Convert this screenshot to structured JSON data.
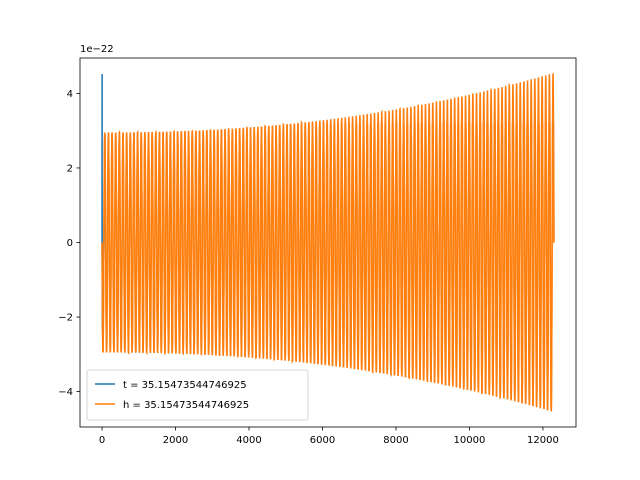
{
  "chart_data": {
    "type": "line",
    "title": "",
    "xlabel": "",
    "ylabel": "",
    "y_offset_text": "1e−22",
    "xlim": [
      -600,
      12900
    ],
    "ylim": [
      -4.95,
      4.95
    ],
    "x_ticks": [
      0,
      2000,
      4000,
      6000,
      8000,
      10000,
      12000
    ],
    "x_tick_labels": [
      "0",
      "2000",
      "4000",
      "6000",
      "8000",
      "10000",
      "12000"
    ],
    "y_ticks": [
      -4,
      -2,
      0,
      2,
      4
    ],
    "y_tick_labels": [
      "−4",
      "−2",
      "0",
      "2",
      "4"
    ],
    "grid": false,
    "legend_position": "lower-left",
    "series": [
      {
        "name": "t = 35.15473544746925",
        "color": "#1f77b4",
        "x": [
          0,
          1,
          2,
          3,
          4,
          5,
          10,
          20,
          40,
          60,
          80
        ],
        "y": [
          0.0,
          4.5,
          4.5,
          2.0,
          0.0,
          -1.2,
          -2.0,
          -2.5,
          -1.0,
          0.5,
          2.9
        ]
      },
      {
        "name": "h = 35.15473544746925",
        "color": "#ff7f0e",
        "n_points": 12300,
        "n_cycles": 124,
        "amplitude_start": 2.95,
        "amplitude_end": 4.55,
        "x_range": [
          0,
          12300
        ]
      }
    ]
  }
}
